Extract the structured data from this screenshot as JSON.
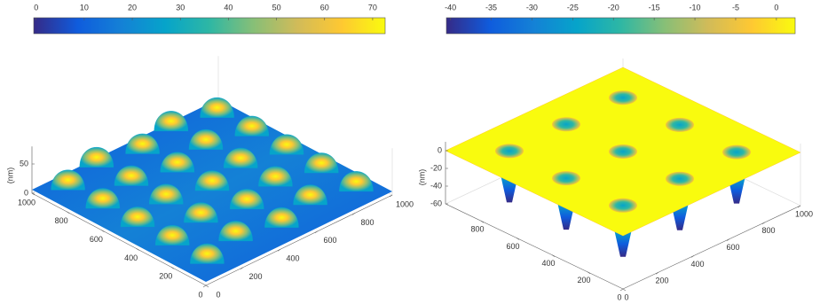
{
  "chart_data": [
    {
      "type": "surface",
      "zlabel": "(nm)",
      "colormap": [
        "#352a87",
        "#0f5cdd",
        "#1481d6",
        "#06a4ca",
        "#2eb7a4",
        "#87bf77",
        "#d1bb59",
        "#fec832",
        "#f9fb0e"
      ],
      "clim": [
        -0.5,
        72.6
      ],
      "cticks": [
        0,
        10,
        20,
        30,
        40,
        50,
        60,
        70
      ],
      "xlim": [
        0,
        1000
      ],
      "xticks": [
        0,
        200,
        400,
        600,
        800,
        1000
      ],
      "ylim": [
        0,
        1000
      ],
      "yticks": [
        0,
        200,
        400,
        600,
        800,
        1000
      ],
      "zlim": [
        0,
        80
      ],
      "zticks": [
        0,
        50
      ]
    },
    {
      "type": "surface",
      "zlabel": "(nm)",
      "colormap": [
        "#352a87",
        "#0f5cdd",
        "#1481d6",
        "#06a4ca",
        "#2eb7a4",
        "#87bf77",
        "#d1bb59",
        "#fec832",
        "#f9fb0e"
      ],
      "clim": [
        -40.5,
        2.3
      ],
      "cticks": [
        -40,
        -35,
        -30,
        -25,
        -20,
        -15,
        -10,
        -5,
        0
      ],
      "xlim": [
        0,
        1000
      ],
      "xticks": [
        0,
        200,
        400,
        600,
        800
      ],
      "ylim": [
        0,
        1000
      ],
      "yticks": [
        0,
        200,
        400,
        600,
        800,
        1000
      ],
      "zlim": [
        -60,
        10
      ],
      "zticks": [
        -60,
        -40,
        -20,
        0
      ]
    }
  ]
}
